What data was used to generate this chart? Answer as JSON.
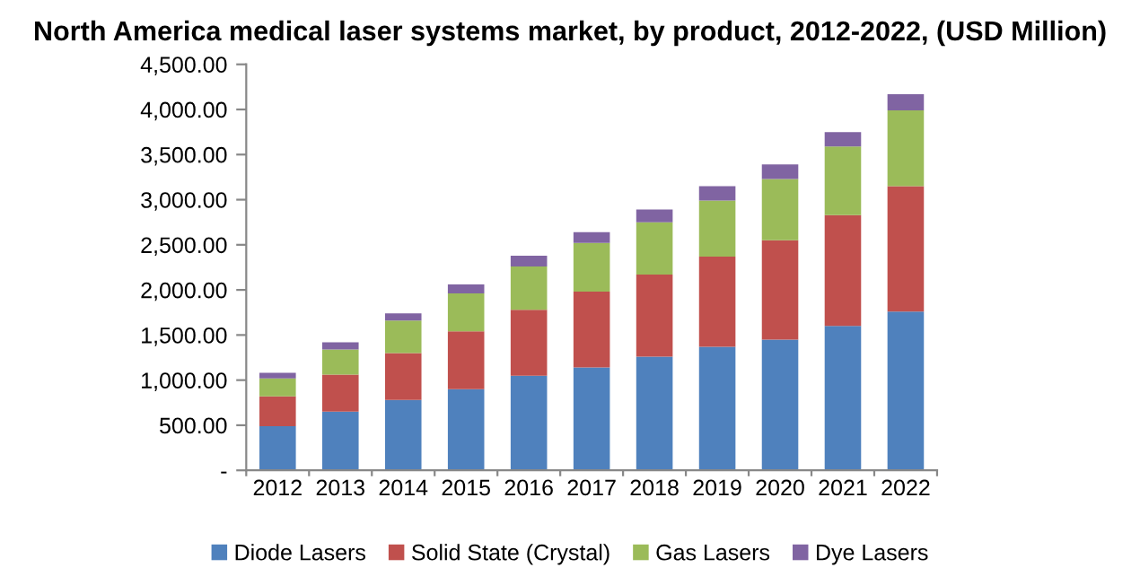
{
  "chart_data": {
    "type": "bar",
    "stacked": true,
    "title": "North America medical laser systems market, by product, 2012-2022, (USD Million)",
    "categories": [
      "2012",
      "2013",
      "2014",
      "2015",
      "2016",
      "2017",
      "2018",
      "2019",
      "2020",
      "2021",
      "2022"
    ],
    "series": [
      {
        "name": "Diode Lasers",
        "color": "#4f81bd",
        "values": [
          490,
          650,
          780,
          900,
          1050,
          1140,
          1260,
          1370,
          1450,
          1600,
          1760
        ]
      },
      {
        "name": "Solid State (Crystal)",
        "color": "#c0504d",
        "values": [
          330,
          410,
          520,
          640,
          730,
          840,
          910,
          1000,
          1100,
          1230,
          1390
        ]
      },
      {
        "name": "Gas Lasers",
        "color": "#9bbb59",
        "values": [
          200,
          280,
          360,
          420,
          480,
          540,
          580,
          620,
          680,
          760,
          840
        ]
      },
      {
        "name": "Dye Lasers",
        "color": "#8064a2",
        "values": [
          60,
          80,
          80,
          100,
          120,
          120,
          140,
          160,
          160,
          160,
          180
        ]
      }
    ],
    "ylim": [
      0,
      4500
    ],
    "yticks": [
      {
        "value": 0,
        "label": "-"
      },
      {
        "value": 500,
        "label": "500.00"
      },
      {
        "value": 1000,
        "label": "1,000.00"
      },
      {
        "value": 1500,
        "label": "1,500.00"
      },
      {
        "value": 2000,
        "label": "2,000.00"
      },
      {
        "value": 2500,
        "label": "2,500.00"
      },
      {
        "value": 3000,
        "label": "3,000.00"
      },
      {
        "value": 3500,
        "label": "3,500.00"
      },
      {
        "value": 4000,
        "label": "4,000.00"
      },
      {
        "value": 4500,
        "label": "4,500.00"
      }
    ],
    "grid": false,
    "legend": "bottom"
  }
}
